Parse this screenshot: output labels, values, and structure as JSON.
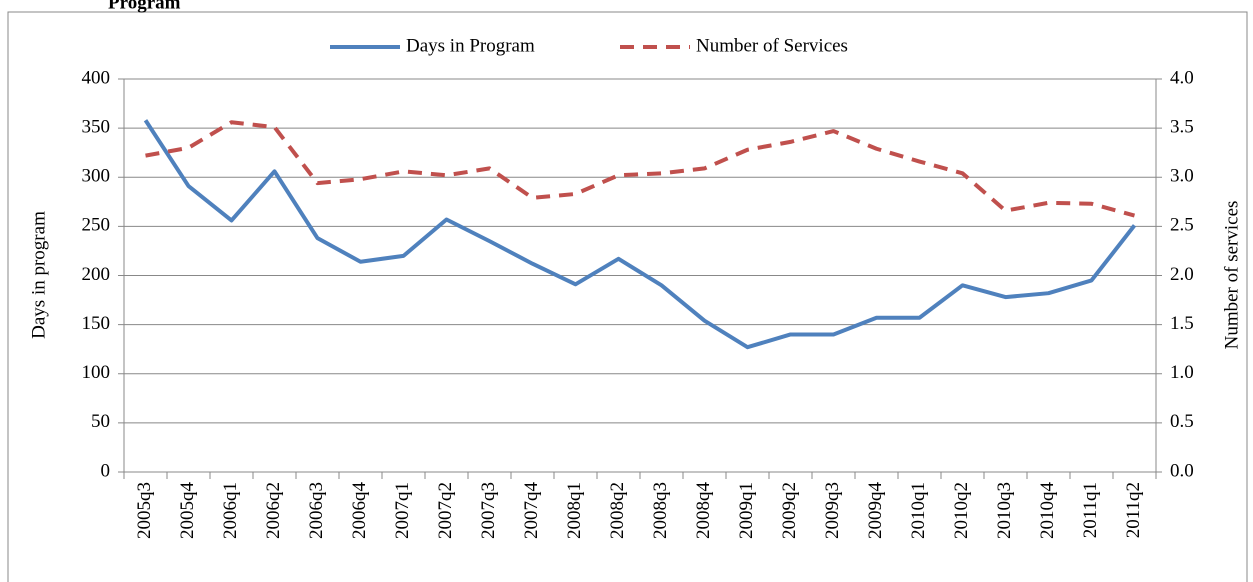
{
  "chart_data": {
    "type": "line",
    "title": "Program",
    "categories": [
      "2005q3",
      "2005q4",
      "2006q1",
      "2006q2",
      "2006q3",
      "2006q4",
      "2007q1",
      "2007q2",
      "2007q3",
      "2007q4",
      "2008q1",
      "2008q2",
      "2008q3",
      "2008q4",
      "2009q1",
      "2009q2",
      "2009q3",
      "2009q4",
      "2010q1",
      "2010q2",
      "2010q3",
      "2010q4",
      "2011q1",
      "2011q2"
    ],
    "series": [
      {
        "name": "Days in Program",
        "color": "#4f81bd",
        "dash": "solid",
        "values": [
          358,
          291,
          256,
          306,
          238,
          214,
          220,
          257,
          235,
          212,
          191,
          217,
          190,
          154,
          127,
          140,
          140,
          157,
          157,
          190,
          178,
          182,
          195,
          251
        ]
      },
      {
        "name": "Number of Services",
        "color": "#c0504d",
        "dash": "dashed",
        "axis": "y2",
        "values": [
          3.22,
          3.3,
          3.56,
          3.51,
          2.94,
          2.98,
          3.06,
          3.02,
          3.09,
          2.79,
          2.83,
          3.02,
          3.04,
          3.09,
          3.28,
          3.36,
          3.47,
          3.29,
          3.16,
          3.04,
          2.66,
          2.74,
          2.73,
          2.61
        ]
      }
    ],
    "ylabel": "Days in program",
    "y2label": "Number of services",
    "ylim": [
      0,
      400
    ],
    "yticks": [
      0,
      50,
      100,
      150,
      200,
      250,
      300,
      350,
      400
    ],
    "y2lim": [
      0,
      4
    ],
    "y2ticks": [
      {
        "value": 0,
        "label": "0.0"
      },
      0.5,
      {
        "value": 1,
        "label": "1.0"
      },
      1.5,
      {
        "value": 2,
        "label": "2.0"
      },
      2.5,
      {
        "value": 3,
        "label": "3.0"
      },
      3.5,
      {
        "value": 4,
        "label": "4.0"
      }
    ],
    "grid": true,
    "legend": "top"
  }
}
